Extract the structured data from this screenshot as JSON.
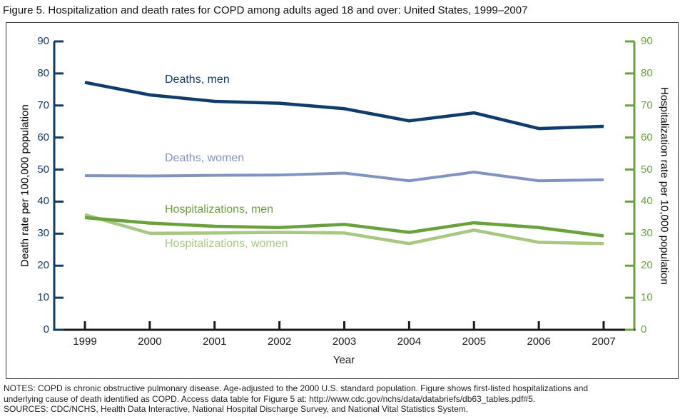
{
  "title": "Figure 5. Hospitalization and death rates for COPD among adults aged 18 and over: United States, 1999–2007",
  "notes": {
    "line1": "NOTES: COPD is chronic obstructive pulmonary disease. Age-adjusted to the 2000 U.S. standard population. Figure shows first-listed hospitalizations and",
    "line2": "underlying cause of death identified as COPD. Access data table for Figure 5 at: http://www.cdc.gov/nchs/data/databriefs/db63_tables.pdf#5.",
    "line3": "SOURCES: CDC/NCHS, Health Data Interactive, National Hospital Discharge Survey, and National Vital Statistics System."
  },
  "chart_data": {
    "type": "line",
    "x": [
      1999,
      2000,
      2001,
      2002,
      2003,
      2004,
      2005,
      2006,
      2007
    ],
    "xlabel": "Year",
    "grid": false,
    "legend": "inline-labels",
    "left_axis": {
      "label": "Death rate per 100,000 population",
      "range": [
        0,
        90
      ],
      "tick_step": 10,
      "color": "#0e3d6c"
    },
    "right_axis": {
      "label": "Hospitalization rate per 10,000 population",
      "range": [
        0,
        90
      ],
      "tick_step": 10,
      "color": "#69a23b"
    },
    "x_axis_color": "#1a1a1a",
    "series": [
      {
        "name": "deaths-men",
        "label": "Deaths, men",
        "axis": "left",
        "color": "#0e3d6c",
        "values": [
          77.2,
          73.3,
          71.3,
          70.7,
          69.0,
          65.2,
          67.7,
          62.8,
          63.5
        ]
      },
      {
        "name": "deaths-women",
        "label": "Deaths, women",
        "axis": "left",
        "color": "#8093c3",
        "values": [
          48.1,
          48.0,
          48.2,
          48.3,
          48.9,
          46.5,
          49.2,
          46.5,
          46.8
        ]
      },
      {
        "name": "hospitalizations-men",
        "label": "Hospitalizations, men",
        "axis": "right",
        "color": "#69a23b",
        "values": [
          35.0,
          33.3,
          32.3,
          31.9,
          32.9,
          30.4,
          33.4,
          31.9,
          29.3
        ]
      },
      {
        "name": "hospitalizations-women",
        "label": "Hospitalizations, women",
        "axis": "right",
        "color": "#a7c87f",
        "values": [
          35.9,
          30.1,
          30.2,
          30.4,
          30.2,
          26.9,
          31.1,
          27.3,
          26.9
        ]
      }
    ]
  }
}
